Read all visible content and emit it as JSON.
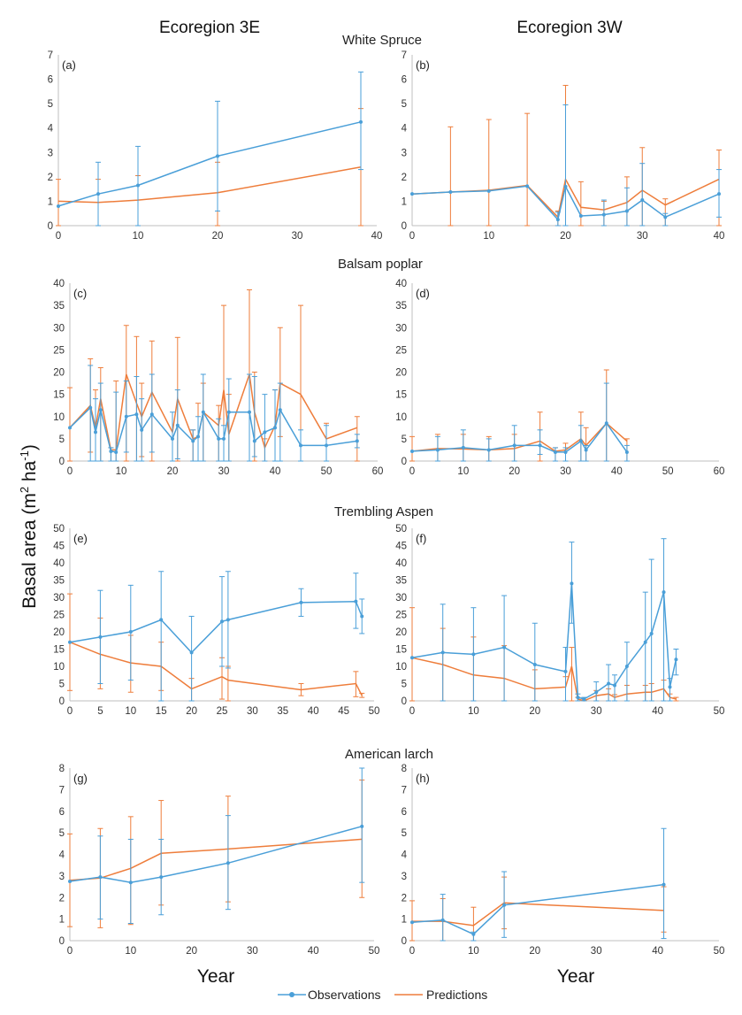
{
  "colors": {
    "observations": "#4a9fd8",
    "predictions": "#ee7d3b",
    "axis": "#bfbfbf"
  },
  "titles": {
    "col_3e": "Ecoregion 3E",
    "col_3w": "Ecoregion 3W",
    "species": [
      "White Spruce",
      "Balsam poplar",
      "Trembling Aspen",
      "American larch"
    ]
  },
  "ylabel": "Basal area (m",
  "ylabel_sup": "2",
  "ylabel_mid": " ha",
  "ylabel_sup2": "-1",
  "ylabel_end": ")",
  "xlabel": "Year",
  "legend": {
    "obs": "Observations",
    "pred": "Predictions"
  },
  "chart_data": [
    {
      "type": "line",
      "panel": "(a)",
      "species": "White Spruce",
      "ecoregion": "3E",
      "xlim": [
        0,
        40
      ],
      "xticks": [
        0,
        10,
        20,
        30,
        40
      ],
      "ylim": [
        0,
        7
      ],
      "yticks": [
        0,
        1,
        2,
        3,
        4,
        5,
        6,
        7
      ],
      "series": [
        {
          "name": "Observations",
          "x": [
            0,
            5,
            10,
            20,
            38
          ],
          "values": [
            0.8,
            1.3,
            1.65,
            2.85,
            4.25
          ],
          "err_low": [
            0,
            0,
            0,
            0.6,
            2.3
          ],
          "err_high": [
            0,
            2.6,
            3.25,
            5.1,
            6.3
          ]
        },
        {
          "name": "Predictions",
          "x": [
            0,
            5,
            10,
            20,
            38
          ],
          "values": [
            1.0,
            0.95,
            1.05,
            1.35,
            2.4
          ],
          "err_low": [
            0,
            0,
            0,
            0,
            0
          ],
          "err_high": [
            1.9,
            1.9,
            2.05,
            2.6,
            4.8
          ]
        }
      ]
    },
    {
      "type": "line",
      "panel": "(b)",
      "species": "White Spruce",
      "ecoregion": "3W",
      "xlim": [
        0,
        40
      ],
      "xticks": [
        0,
        10,
        20,
        30,
        40
      ],
      "ylim": [
        0,
        7
      ],
      "yticks": [
        0,
        1,
        2,
        3,
        4,
        5,
        6,
        7
      ],
      "series": [
        {
          "name": "Observations",
          "x": [
            0,
            5,
            10,
            15,
            19,
            20,
            22,
            25,
            28,
            30,
            33,
            40
          ],
          "values": [
            1.3,
            1.38,
            1.42,
            1.62,
            0.25,
            1.6,
            0.4,
            0.45,
            0.6,
            1.05,
            0.35,
            1.3
          ],
          "err_low": [
            0,
            0,
            0,
            0,
            0,
            0,
            0,
            0,
            0,
            0,
            0,
            0.35
          ],
          "err_high": [
            0,
            0,
            0,
            0,
            0.55,
            4.95,
            0,
            1.05,
            1.55,
            2.55,
            0.5,
            2.3
          ]
        },
        {
          "name": "Predictions",
          "x": [
            0,
            5,
            10,
            15,
            19,
            20,
            22,
            25,
            28,
            30,
            33,
            40
          ],
          "values": [
            1.3,
            1.38,
            1.45,
            1.65,
            0.35,
            1.9,
            0.75,
            0.65,
            0.95,
            1.45,
            0.85,
            1.9
          ],
          "err_low": [
            0,
            0,
            0,
            0,
            0,
            0,
            0,
            0,
            0,
            0,
            0,
            0
          ],
          "err_high": [
            0,
            4.05,
            4.35,
            4.6,
            0.6,
            5.75,
            1.8,
            1.0,
            2.0,
            3.2,
            1.1,
            3.1
          ]
        }
      ]
    },
    {
      "type": "line",
      "panel": "(c)",
      "species": "Balsam poplar",
      "ecoregion": "3E",
      "xlim": [
        0,
        60
      ],
      "xticks": [
        0,
        10,
        20,
        30,
        40,
        50,
        60
      ],
      "ylim": [
        0,
        40
      ],
      "yticks": [
        0,
        5,
        10,
        15,
        20,
        25,
        30,
        35,
        40
      ],
      "series": [
        {
          "name": "Observations",
          "x": [
            0,
            4,
            5,
            6,
            8,
            9,
            11,
            13,
            14,
            16,
            20,
            21,
            24,
            25,
            26,
            29,
            30,
            31,
            35,
            36,
            38,
            40,
            41,
            45,
            50,
            56
          ],
          "values": [
            7.5,
            12,
            6.5,
            11.5,
            2.2,
            2.0,
            10,
            10.5,
            7,
            10.5,
            5,
            8,
            4.5,
            5.5,
            11,
            5,
            5,
            11,
            11,
            4.5,
            6.5,
            7.5,
            11.5,
            3.5,
            3.5,
            4.5
          ],
          "err_low": [
            0,
            0,
            0,
            0,
            0,
            0,
            2,
            0,
            0,
            2,
            0,
            0.5,
            0,
            0,
            0,
            0,
            0,
            0,
            0,
            1,
            0,
            0,
            0,
            0,
            0,
            3
          ],
          "err_high": [
            0,
            21.5,
            14,
            17.5,
            3,
            15.5,
            18,
            19,
            14,
            19.5,
            11,
            16,
            7,
            10,
            19.5,
            9.5,
            8,
            18.5,
            19.5,
            19,
            15,
            16,
            17.5,
            7,
            8,
            6
          ]
        },
        {
          "name": "Predictions",
          "x": [
            0,
            4,
            5,
            6,
            8,
            9,
            11,
            13,
            14,
            16,
            20,
            21,
            24,
            25,
            26,
            29,
            30,
            31,
            35,
            36,
            38,
            40,
            41,
            45,
            50,
            56
          ],
          "values": [
            7.5,
            12.5,
            7.5,
            14,
            2.5,
            2.5,
            19.5,
            13,
            10,
            15.5,
            6.5,
            14,
            5,
            5.5,
            11,
            8,
            16,
            6,
            19.5,
            11,
            3,
            8,
            17.5,
            15,
            5,
            7.5
          ],
          "err_low": [
            0,
            2,
            0,
            0,
            0,
            0,
            0,
            0,
            1,
            0,
            0,
            0,
            0,
            0,
            0,
            0,
            0,
            0,
            0,
            0,
            0,
            0,
            5.5,
            0,
            0,
            0
          ],
          "err_high": [
            16.5,
            23,
            16,
            21,
            3,
            18,
            30.5,
            28,
            17.5,
            27,
            0,
            27.8,
            7,
            13,
            17.5,
            12.5,
            35,
            15,
            38.5,
            20,
            5,
            16,
            30,
            35,
            8.5,
            10
          ]
        }
      ]
    },
    {
      "type": "line",
      "panel": "(d)",
      "species": "Balsam poplar",
      "ecoregion": "3W",
      "xlim": [
        0,
        60
      ],
      "xticks": [
        0,
        10,
        20,
        30,
        40,
        50,
        60
      ],
      "ylim": [
        0,
        40
      ],
      "yticks": [
        0,
        5,
        10,
        15,
        20,
        25,
        30,
        35,
        40
      ],
      "series": [
        {
          "name": "Observations",
          "x": [
            0,
            5,
            10,
            15,
            20,
            25,
            28,
            30,
            33,
            34,
            38,
            42
          ],
          "values": [
            2.2,
            2.5,
            3.0,
            2.5,
            3.5,
            3.5,
            2,
            2,
            4.5,
            2.5,
            8.5,
            2
          ],
          "err_low": [
            0,
            0,
            0,
            0,
            0,
            1.5,
            0,
            0,
            0,
            0,
            0,
            0
          ],
          "err_high": [
            0,
            5.5,
            7,
            5,
            8,
            7,
            3,
            3,
            8,
            3.5,
            17.5,
            3.5
          ]
        },
        {
          "name": "Predictions",
          "x": [
            0,
            5,
            10,
            15,
            20,
            25,
            28,
            30,
            33,
            34,
            38,
            42
          ],
          "values": [
            2.2,
            2.8,
            2.7,
            2.5,
            2.8,
            4.5,
            2.2,
            2.5,
            5.0,
            3.5,
            8.5,
            4.5
          ],
          "err_low": [
            0,
            0,
            0,
            0,
            0,
            0,
            0,
            0,
            0,
            0,
            0,
            0
          ],
          "err_high": [
            5.5,
            6,
            6,
            5.5,
            6,
            11,
            3,
            4,
            11,
            7.5,
            20.5,
            5
          ]
        }
      ]
    },
    {
      "type": "line",
      "panel": "(e)",
      "species": "Trembling Aspen",
      "ecoregion": "3E",
      "xlim": [
        0,
        50
      ],
      "xticks": [
        0,
        5,
        10,
        15,
        20,
        25,
        30,
        35,
        40,
        45,
        50
      ],
      "ylim": [
        0,
        50
      ],
      "yticks": [
        0,
        5,
        10,
        15,
        20,
        25,
        30,
        35,
        40,
        45,
        50
      ],
      "series": [
        {
          "name": "Observations",
          "x": [
            0,
            5,
            10,
            15,
            20,
            25,
            26,
            38,
            47,
            48
          ],
          "values": [
            17,
            18.5,
            20,
            23.5,
            14,
            23,
            23.5,
            28.5,
            28.8,
            24.5
          ],
          "err_low": [
            0,
            5,
            6,
            0,
            0,
            10,
            9.5,
            24.5,
            21,
            19.5
          ],
          "err_high": [
            0,
            32,
            33.5,
            37.5,
            24.5,
            36,
            37.5,
            32.5,
            37,
            29.5
          ]
        },
        {
          "name": "Predictions",
          "x": [
            0,
            5,
            10,
            15,
            20,
            25,
            26,
            38,
            47,
            48
          ],
          "values": [
            17,
            13.5,
            11,
            10,
            3.5,
            7,
            6,
            3.2,
            5,
            1.5
          ],
          "err_low": [
            3,
            3.5,
            2.5,
            3,
            0,
            0.5,
            0,
            1.5,
            1.2,
            1
          ],
          "err_high": [
            31,
            24,
            19,
            17,
            6.5,
            12.5,
            10,
            5,
            8.5,
            2.2
          ]
        }
      ]
    },
    {
      "type": "line",
      "panel": "(f)",
      "species": "Trembling Aspen",
      "ecoregion": "3W",
      "xlim": [
        0,
        50
      ],
      "xticks": [
        0,
        10,
        20,
        30,
        40,
        50
      ],
      "ylim": [
        0,
        50
      ],
      "yticks": [
        0,
        5,
        10,
        15,
        20,
        25,
        30,
        35,
        40,
        45,
        50
      ],
      "series": [
        {
          "name": "Observations",
          "x": [
            0,
            5,
            10,
            15,
            20,
            25,
            26,
            27,
            28,
            30,
            32,
            33,
            35,
            38,
            39,
            41,
            42,
            43
          ],
          "values": [
            12.5,
            14,
            13.5,
            15.5,
            10.5,
            8.5,
            34,
            1,
            0.5,
            2.5,
            5,
            4.5,
            10,
            17,
            19.5,
            31.5,
            4,
            12
          ],
          "err_low": [
            0,
            0,
            0,
            0,
            0,
            0,
            22.5,
            0,
            0,
            0,
            0,
            0,
            0,
            0,
            0,
            0,
            0,
            7.5
          ],
          "err_high": [
            0,
            28,
            27,
            30.5,
            22.5,
            15.5,
            46,
            2,
            1,
            5.5,
            10.5,
            7.5,
            17,
            31.5,
            41,
            47,
            6.5,
            15
          ]
        },
        {
          "name": "Predictions",
          "x": [
            0,
            5,
            10,
            15,
            20,
            25,
            26,
            27,
            28,
            30,
            32,
            33,
            35,
            38,
            39,
            41,
            42,
            43
          ],
          "values": [
            12.5,
            10.5,
            7.5,
            6.5,
            3.5,
            4,
            10,
            0.5,
            0,
            1.5,
            2,
            1,
            2,
            2.5,
            2.5,
            3.5,
            1,
            0.5
          ],
          "err_low": [
            0,
            0,
            0,
            0,
            0,
            0,
            0,
            0,
            0,
            0,
            0,
            0,
            0,
            0,
            0,
            0,
            0,
            0
          ],
          "err_high": [
            27,
            21,
            18.5,
            16,
            9,
            7,
            15.5,
            1,
            0.3,
            3,
            3.5,
            1.8,
            4.5,
            4.5,
            5,
            6,
            2,
            1
          ]
        }
      ]
    },
    {
      "type": "line",
      "panel": "(g)",
      "species": "American larch",
      "ecoregion": "3E",
      "xlim": [
        0,
        50
      ],
      "xticks": [
        0,
        10,
        20,
        30,
        40,
        50
      ],
      "ylim": [
        0,
        8
      ],
      "yticks": [
        0,
        1,
        2,
        3,
        4,
        5,
        6,
        7,
        8
      ],
      "series": [
        {
          "name": "Observations",
          "x": [
            0,
            5,
            10,
            15,
            26,
            48
          ],
          "values": [
            2.75,
            2.95,
            2.7,
            2.95,
            3.6,
            5.3
          ],
          "err_low": [
            0,
            1,
            0.8,
            1.2,
            1.45,
            2.7
          ],
          "err_high": [
            0,
            4.85,
            4.7,
            4.7,
            5.8,
            8.0
          ]
        },
        {
          "name": "Predictions",
          "x": [
            0,
            5,
            10,
            15,
            26,
            48
          ],
          "values": [
            2.8,
            2.9,
            3.35,
            4.05,
            4.25,
            4.7
          ],
          "err_low": [
            0.65,
            0.6,
            0.75,
            1.65,
            1.8,
            2.0
          ],
          "err_high": [
            4.95,
            5.2,
            5.75,
            6.5,
            6.7,
            7.45
          ]
        }
      ]
    },
    {
      "type": "line",
      "panel": "(h)",
      "species": "American larch",
      "ecoregion": "3W",
      "xlim": [
        0,
        50
      ],
      "xticks": [
        0,
        10,
        20,
        30,
        40,
        50
      ],
      "ylim": [
        0,
        8
      ],
      "yticks": [
        0,
        1,
        2,
        3,
        4,
        5,
        6,
        7,
        8
      ],
      "series": [
        {
          "name": "Observations",
          "x": [
            0,
            5,
            10,
            15,
            41
          ],
          "values": [
            0.85,
            0.95,
            0.3,
            1.65,
            2.6
          ],
          "err_low": [
            0,
            0,
            0,
            0.15,
            0.1
          ],
          "err_high": [
            0,
            2.15,
            0.4,
            3.2,
            5.2
          ]
        },
        {
          "name": "Predictions",
          "x": [
            0,
            5,
            10,
            15,
            41
          ],
          "values": [
            0.9,
            0.9,
            0.7,
            1.75,
            1.4
          ],
          "err_low": [
            0,
            0,
            0,
            0.55,
            0.4
          ],
          "err_high": [
            1.85,
            1.95,
            1.55,
            2.95,
            2.5
          ]
        }
      ]
    }
  ]
}
